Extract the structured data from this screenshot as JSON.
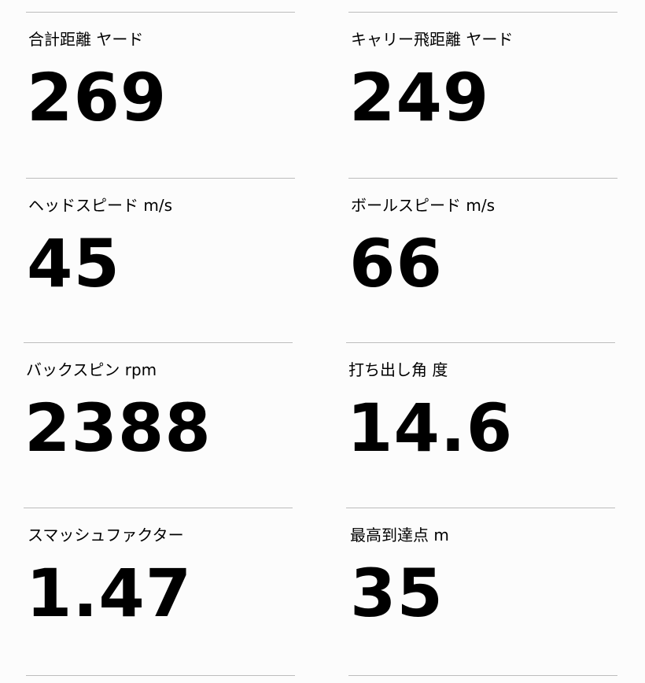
{
  "metrics": [
    {
      "label": "合計距離 ヤード",
      "value": "269"
    },
    {
      "label": "キャリー飛距離 ヤード",
      "value": "249"
    },
    {
      "label": "ヘッドスピード m/s",
      "value": "45"
    },
    {
      "label": "ボールスピード m/s",
      "value": "66"
    },
    {
      "label": "バックスピン rpm",
      "value": "2388"
    },
    {
      "label": "打ち出し角 度",
      "value": "14.6"
    },
    {
      "label": "スマッシュファクター",
      "value": "1.47"
    },
    {
      "label": "最高到達点 m",
      "value": "35"
    }
  ]
}
